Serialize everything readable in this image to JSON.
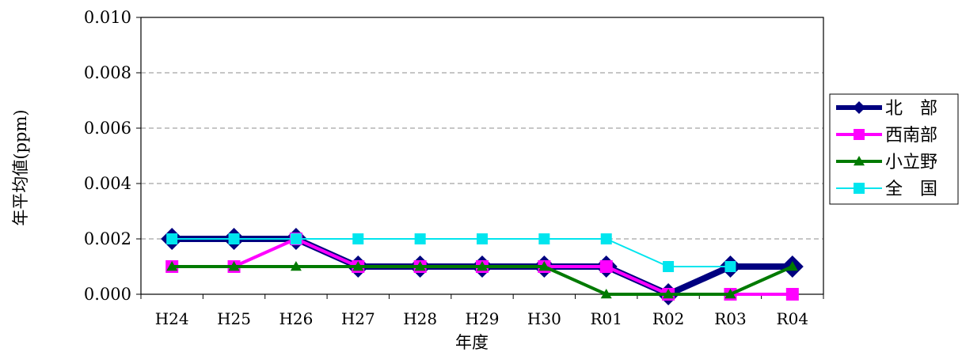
{
  "chart_data": {
    "type": "line",
    "title": "",
    "xlabel": "年度",
    "ylabel": "年平均値(ppm)",
    "ylim": [
      0,
      0.01
    ],
    "yticks": [
      0,
      0.002,
      0.004,
      0.006,
      0.008,
      0.01
    ],
    "ytick_labels": [
      "0.000",
      "0.002",
      "0.004",
      "0.006",
      "0.008",
      "0.010"
    ],
    "categories": [
      "H24",
      "H25",
      "H26",
      "H27",
      "H28",
      "H29",
      "H30",
      "R01",
      "R02",
      "R03",
      "R04"
    ],
    "grid": "horizontal dashed",
    "legend_position": "right",
    "series": [
      {
        "name": "北　部",
        "color": "#000080",
        "marker": "diamond",
        "values": [
          0.002,
          0.002,
          0.002,
          0.001,
          0.001,
          0.001,
          0.001,
          0.001,
          0.0,
          0.001,
          0.001
        ]
      },
      {
        "name": "西南部",
        "color": "#ff00ff",
        "marker": "square",
        "values": [
          0.001,
          0.001,
          0.002,
          0.001,
          0.001,
          0.001,
          0.001,
          0.001,
          0.0,
          0.0,
          0.0
        ]
      },
      {
        "name": "小立野",
        "color": "#007a00",
        "marker": "triangle",
        "values": [
          0.001,
          0.001,
          0.001,
          0.001,
          0.001,
          0.001,
          0.001,
          0.0,
          0.0,
          0.0,
          0.001
        ]
      },
      {
        "name": "全　国",
        "color": "#00e5ee",
        "marker": "square",
        "values": [
          0.002,
          0.002,
          0.002,
          0.002,
          0.002,
          0.002,
          0.002,
          0.002,
          0.001,
          0.001,
          null
        ]
      }
    ]
  }
}
